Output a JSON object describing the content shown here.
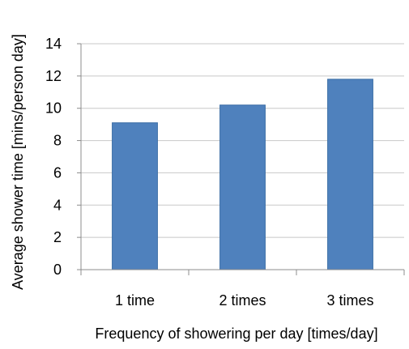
{
  "chart_data": {
    "type": "bar",
    "categories": [
      "1 time",
      "2 times",
      "3 times"
    ],
    "values": [
      9.1,
      10.2,
      11.8
    ],
    "xlabel": "Frequency of showering per day [times/day]",
    "ylabel": "Average shower time [mins/person day]",
    "ylim": [
      0,
      14
    ],
    "yticks": [
      0,
      2,
      4,
      6,
      8,
      10,
      12,
      14
    ],
    "grid": true,
    "legend": "none",
    "colors": {
      "bar_fill": "#4f81bd",
      "bar_stroke": "#3c6ea6",
      "grid": "#c8c8c8",
      "axis": "#8c8c8c"
    }
  }
}
